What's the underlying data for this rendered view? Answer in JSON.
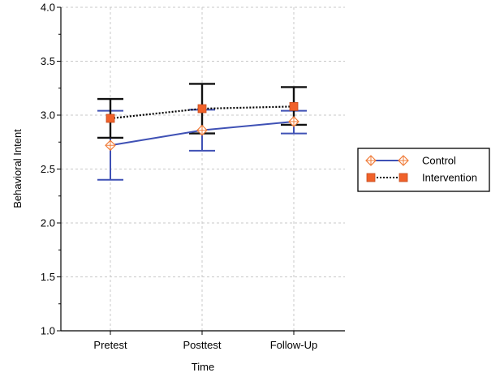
{
  "chart_data": {
    "type": "line",
    "title": "",
    "xlabel": "Time",
    "ylabel": "Behavioral Intent",
    "categories": [
      "Pretest",
      "Posttest",
      "Follow-Up"
    ],
    "ylim": [
      1.0,
      4.0
    ],
    "yticks": [
      "1.0",
      "1.5",
      "2.0",
      "2.5",
      "3.0",
      "3.5",
      "4.0"
    ],
    "grid": true,
    "legend_position": "right",
    "series": [
      {
        "name": "Control",
        "values": [
          2.72,
          2.86,
          2.94
        ],
        "error_low": [
          2.4,
          2.67,
          2.83
        ],
        "error_high": [
          3.04,
          3.05,
          3.04
        ],
        "color": "#3f51b5",
        "error_color": "#3f51b5",
        "marker": "open-diamond",
        "marker_color": "#f07c3a",
        "line_style": "solid"
      },
      {
        "name": "Intervention",
        "values": [
          2.97,
          3.06,
          3.08
        ],
        "error_low": [
          2.79,
          2.83,
          2.91
        ],
        "error_high": [
          3.15,
          3.29,
          3.26
        ],
        "color": "#000000",
        "error_color": "#111111",
        "marker": "filled-square",
        "marker_color": "#f0612a",
        "line_style": "dotted"
      }
    ]
  }
}
